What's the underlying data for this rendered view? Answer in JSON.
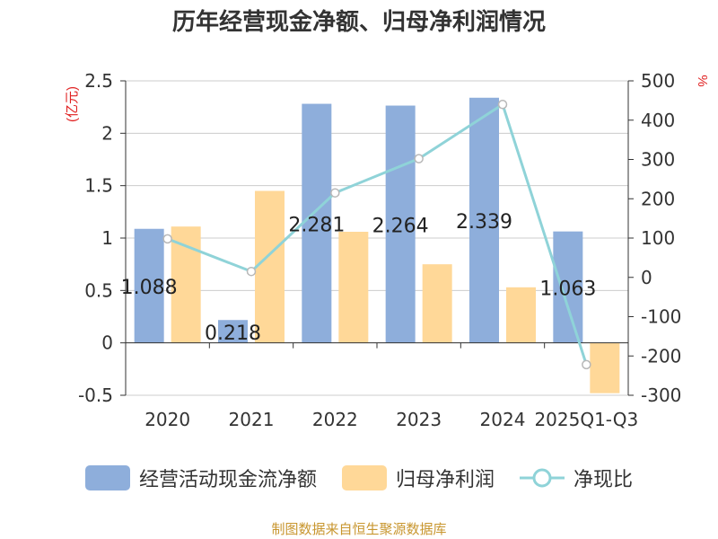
{
  "title": "历年经营现金净额、归母净利润情况",
  "source": "制图数据来自恒生聚源数据库",
  "chart_data": {
    "type": "bar",
    "categories": [
      "2020",
      "2021",
      "2022",
      "2023",
      "2024",
      "2025Q1-Q3"
    ],
    "y_left": {
      "label": "(亿元)",
      "ylim": [
        -0.5,
        2.5
      ],
      "ticks": [
        "2.5",
        "2",
        "1.5",
        "1",
        "0.5",
        "0",
        "-0.5"
      ]
    },
    "y_right": {
      "label": "%",
      "ylim": [
        -300,
        500
      ],
      "ticks": [
        "500",
        "400",
        "300",
        "200",
        "100",
        "0",
        "-100",
        "-200",
        "-300"
      ]
    },
    "series": [
      {
        "name": "经营活动现金流净额",
        "type": "bar",
        "axis": "left",
        "color": "#8eaedb",
        "values": [
          1.088,
          0.218,
          2.281,
          2.264,
          2.339,
          1.063
        ],
        "labels": [
          "1.088",
          "0.218",
          "2.281",
          "2.264",
          "2.339",
          "1.063"
        ]
      },
      {
        "name": "归母净利润",
        "type": "bar",
        "axis": "left",
        "color": "#ffd898",
        "values": [
          1.11,
          1.45,
          1.06,
          0.75,
          0.53,
          -0.48
        ]
      },
      {
        "name": "净现比",
        "type": "line",
        "axis": "right",
        "color": "#8fd3d8",
        "values": [
          98,
          15,
          215,
          302,
          440,
          -222
        ]
      }
    ],
    "grid": true,
    "legend_position": "bottom"
  }
}
